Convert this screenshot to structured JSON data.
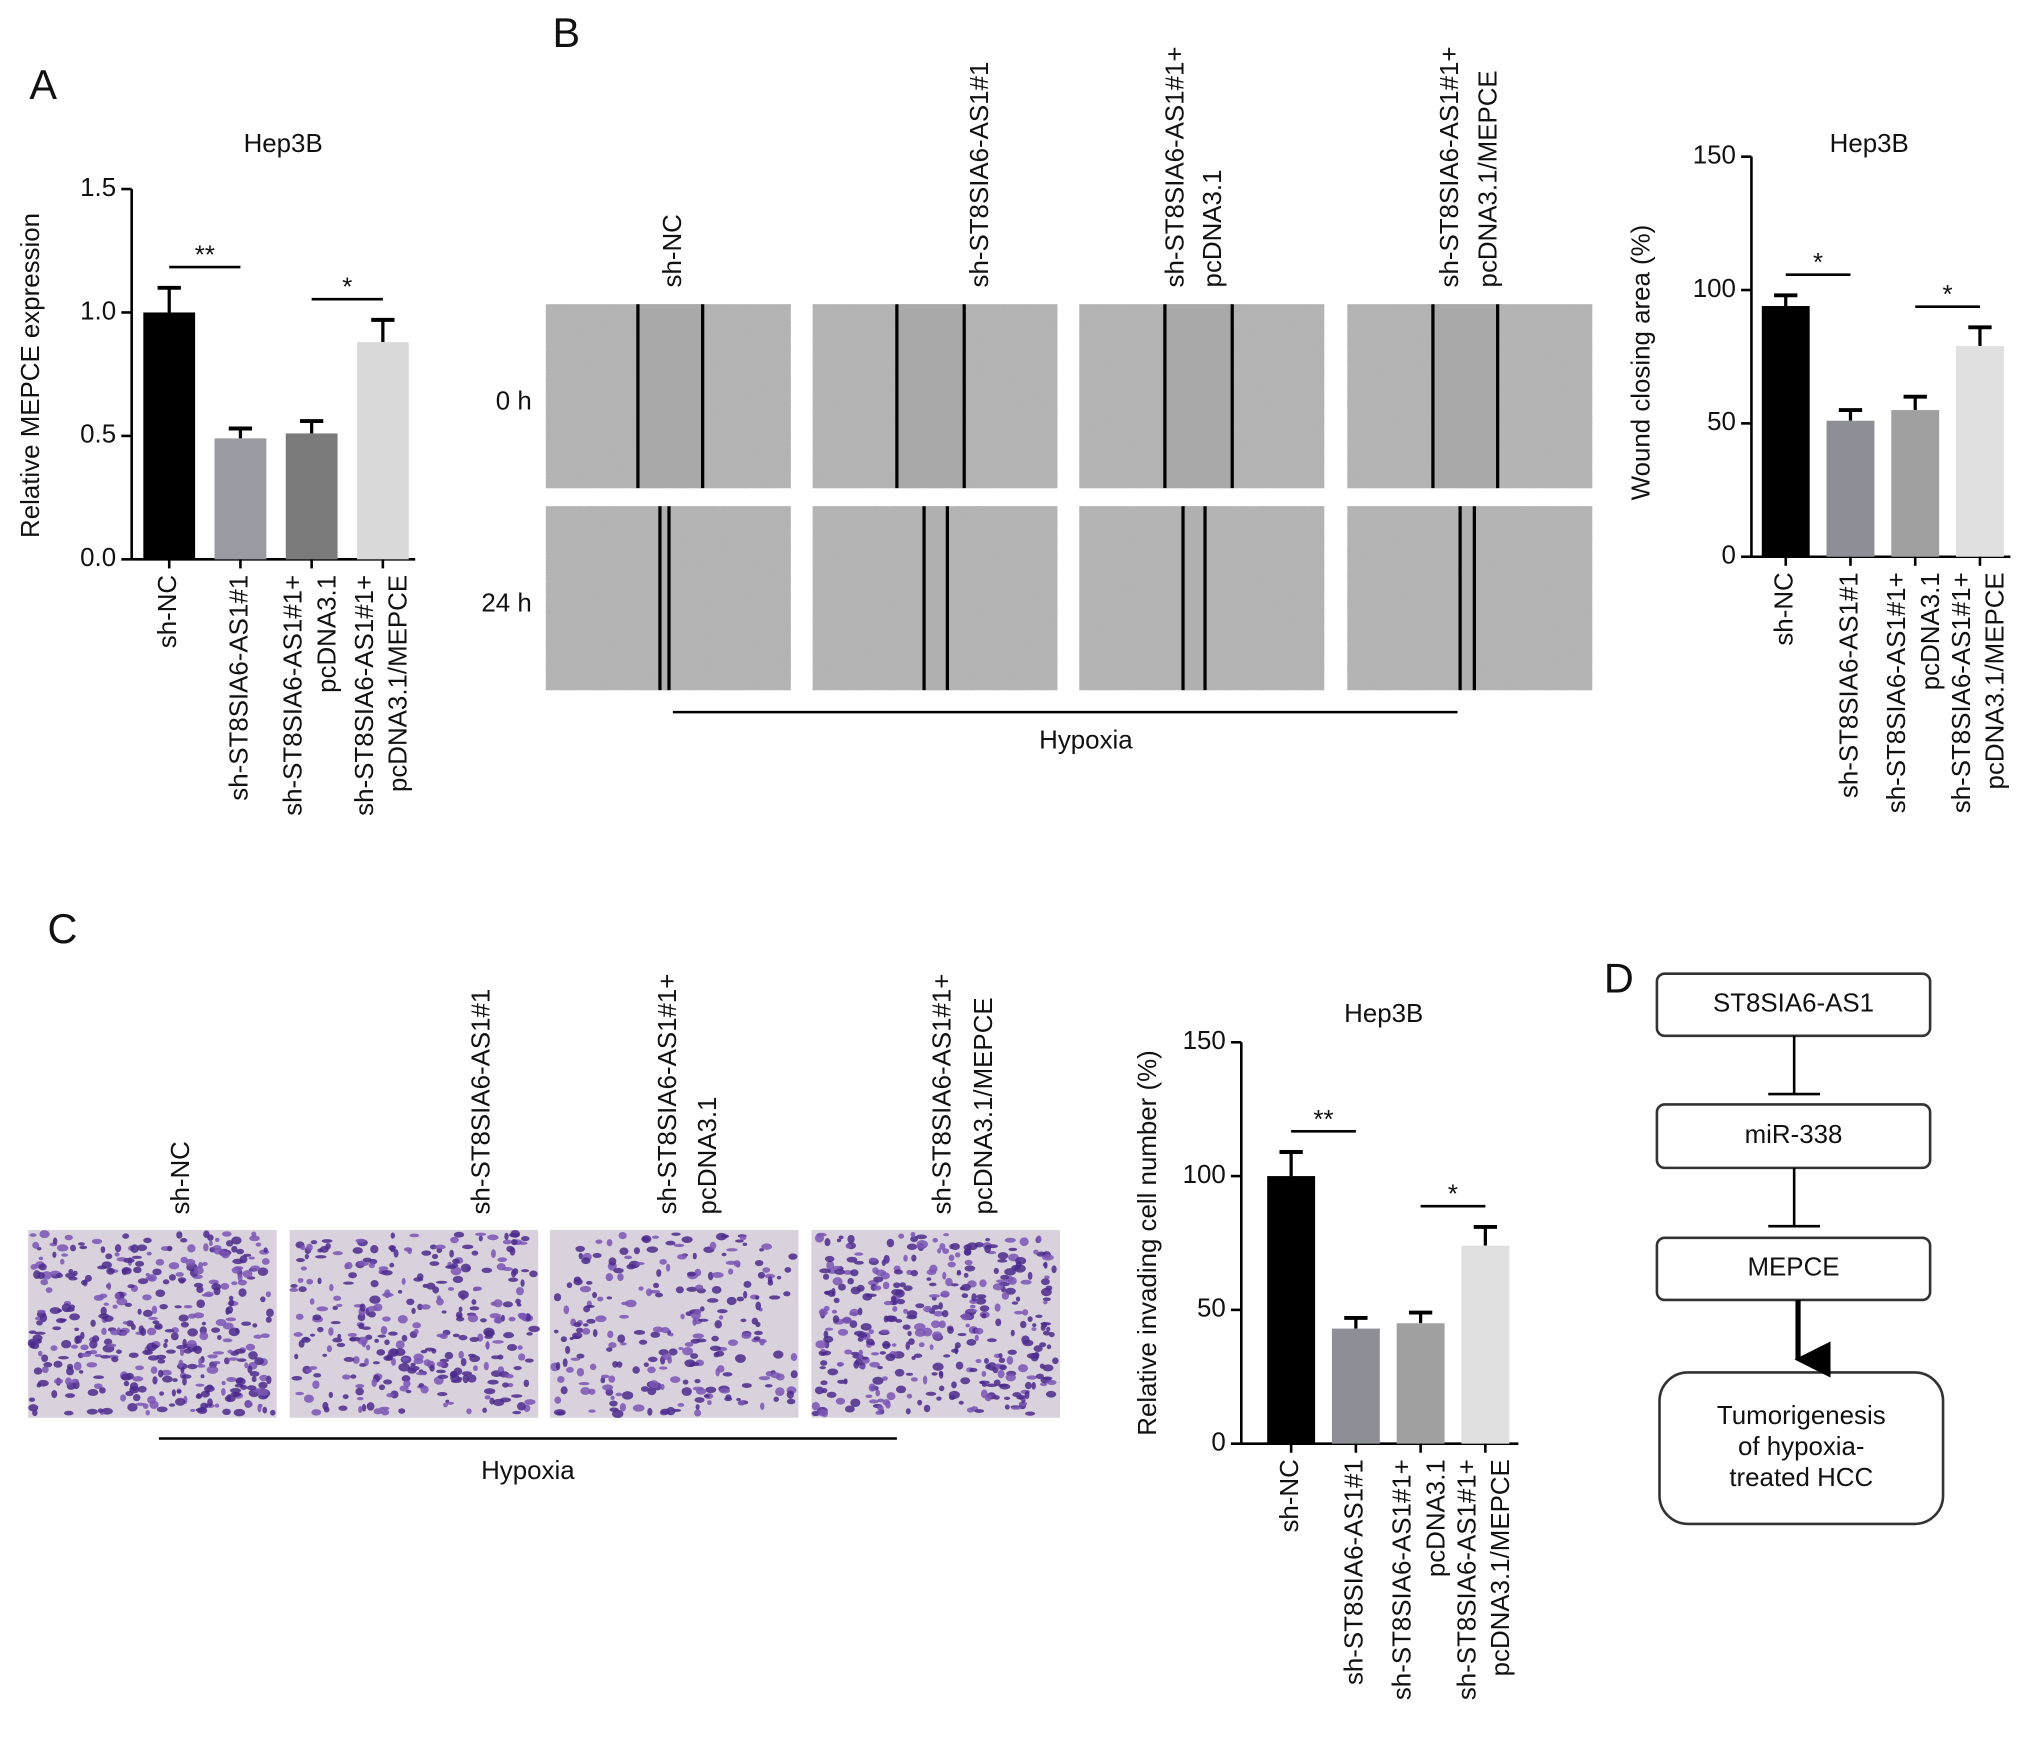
{
  "panel_labels": [
    "A",
    "B",
    "C",
    "D"
  ],
  "chart_data": [
    {
      "type": "bar",
      "title": "Hep3B",
      "y_label": "Relative MEPCE expression",
      "categories": [
        [
          "sh-NC"
        ],
        [
          "sh-ST8SIA6-AS1#1"
        ],
        [
          "sh-ST8SIA6-AS1#1+",
          "pcDNA3.1"
        ],
        [
          "sh-ST8SIA6-AS1#1+",
          "pcDNA3.1/MEPCE"
        ]
      ],
      "values": [
        1.0,
        0.49,
        0.51,
        0.88
      ],
      "errors": [
        0.1,
        0.04,
        0.05,
        0.09
      ],
      "colors": [
        "#000000",
        "#9a9aa2",
        "#7a7a7a",
        "#d9d9d9"
      ],
      "ylim": [
        0,
        1.5
      ],
      "yticks": [
        {
          "value": 0,
          "label": "0.0"
        },
        0.5,
        {
          "value": 1,
          "label": "1.0"
        },
        1.5
      ],
      "significance": [
        {
          "label": "**",
          "between": [
            0,
            1
          ]
        },
        {
          "label": "*",
          "between": [
            2,
            3
          ]
        }
      ]
    },
    {
      "type": "bar",
      "title": "Hep3B",
      "y_label": "Wound closing area (%)",
      "categories": [
        [
          "sh-NC"
        ],
        [
          "sh-ST8SIA6-AS1#1"
        ],
        [
          "sh-ST8SIA6-AS1#1+",
          "pcDNA3.1"
        ],
        [
          "sh-ST8SIA6-AS1#1+",
          "pcDNA3.1/MEPCE"
        ]
      ],
      "values": [
        94,
        51,
        55,
        79
      ],
      "errors": [
        4,
        4,
        5,
        7
      ],
      "colors": [
        "#000000",
        "#8e8e96",
        "#a0a0a0",
        "#e0e0e0"
      ],
      "ylim": [
        0,
        150
      ],
      "yticks": [
        0,
        50,
        100,
        150
      ],
      "significance": [
        {
          "label": "*",
          "between": [
            0,
            1
          ]
        },
        {
          "label": "*",
          "between": [
            2,
            3
          ]
        }
      ]
    },
    {
      "type": "bar",
      "title": "Hep3B",
      "y_label": "Relative invading cell number (%)",
      "categories": [
        [
          "sh-NC"
        ],
        [
          "sh-ST8SIA6-AS1#1"
        ],
        [
          "sh-ST8SIA6-AS1#1+",
          "pcDNA3.1"
        ],
        [
          "sh-ST8SIA6-AS1#1+",
          "pcDNA3.1/MEPCE"
        ]
      ],
      "values": [
        100,
        43,
        45,
        74
      ],
      "errors": [
        9,
        4,
        4,
        7
      ],
      "colors": [
        "#000000",
        "#8e8e96",
        "#a0a0a0",
        "#e0e0e0"
      ],
      "ylim": [
        0,
        150
      ],
      "yticks": [
        0,
        50,
        100,
        150
      ],
      "significance": [
        {
          "label": "**",
          "between": [
            0,
            1
          ]
        },
        {
          "label": "*",
          "between": [
            2,
            3
          ]
        }
      ]
    }
  ],
  "wound_healing": {
    "columns": [
      [
        "sh-NC"
      ],
      [
        "sh-ST8SIA6-AS1#1"
      ],
      [
        "sh-ST8SIA6-AS1#1+",
        "pcDNA3.1"
      ],
      [
        "sh-ST8SIA6-AS1#1+",
        "pcDNA3.1/MEPCE"
      ]
    ],
    "rows": [
      "0 h",
      "24 h"
    ],
    "condition": "Hypoxia"
  },
  "invasion": {
    "columns": [
      [
        "sh-NC"
      ],
      [
        "sh-ST8SIA6-AS1#1"
      ],
      [
        "sh-ST8SIA6-AS1#1+",
        "pcDNA3.1"
      ],
      [
        "sh-ST8SIA6-AS1#1+",
        "pcDNA3.1/MEPCE"
      ]
    ],
    "condition": "Hypoxia"
  },
  "diagram": {
    "nodes": [
      [
        "ST8SIA6-AS1"
      ],
      [
        "miR-338"
      ],
      [
        "MEPCE"
      ],
      [
        "Tumorigenesis",
        "of hypoxia-",
        "treated HCC"
      ]
    ]
  }
}
